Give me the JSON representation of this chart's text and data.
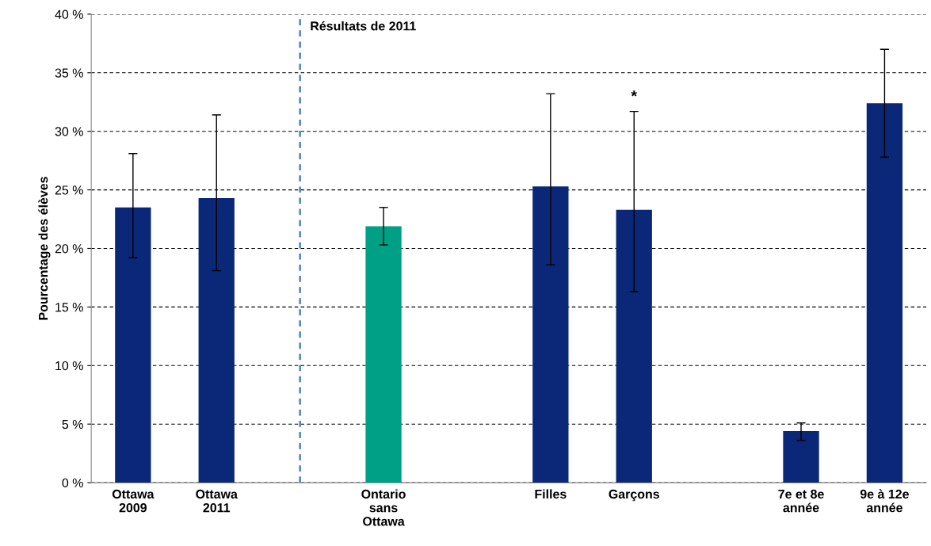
{
  "chart_data": {
    "type": "bar",
    "ylabel": "Pourcentage des élèves",
    "categories": [
      "Ottawa\n2009",
      "Ottawa\n2011",
      null,
      "Ontario\nsans\nOttawa",
      null,
      "Filles",
      "Garçons",
      null,
      "7e et 8e\nannée",
      "9e à 12e\nannée"
    ],
    "values": [
      23.5,
      24.3,
      null,
      21.9,
      null,
      25.3,
      23.3,
      null,
      4.4,
      32.4
    ],
    "colors": [
      "#0b2878",
      "#0b2878",
      null,
      "#00a086",
      null,
      "#0b2878",
      "#0b2878",
      null,
      "#0b2878",
      "#0b2878"
    ],
    "errors": [
      [
        19.2,
        28.1
      ],
      [
        18.1,
        31.4
      ],
      null,
      [
        20.3,
        23.5
      ],
      null,
      [
        18.6,
        33.2
      ],
      [
        16.3,
        31.7
      ],
      null,
      [
        3.6,
        5.1
      ],
      [
        27.8,
        37.0
      ]
    ],
    "ylim": [
      0,
      40
    ],
    "yticks": [
      {
        "value": 0,
        "label": "0 %"
      },
      {
        "value": 5,
        "label": "5 %"
      },
      {
        "value": 10,
        "label": "10 %"
      },
      {
        "value": 15,
        "label": "15 %"
      },
      {
        "value": 20,
        "label": "20 %"
      },
      {
        "value": 25,
        "label": "25 %"
      },
      {
        "value": 30,
        "label": "30 %"
      },
      {
        "value": 35,
        "label": "35 %"
      },
      {
        "value": 40,
        "label": "40 %"
      }
    ],
    "grid": "y",
    "annotations": [
      "Résultats de 2011",
      "*"
    ]
  }
}
